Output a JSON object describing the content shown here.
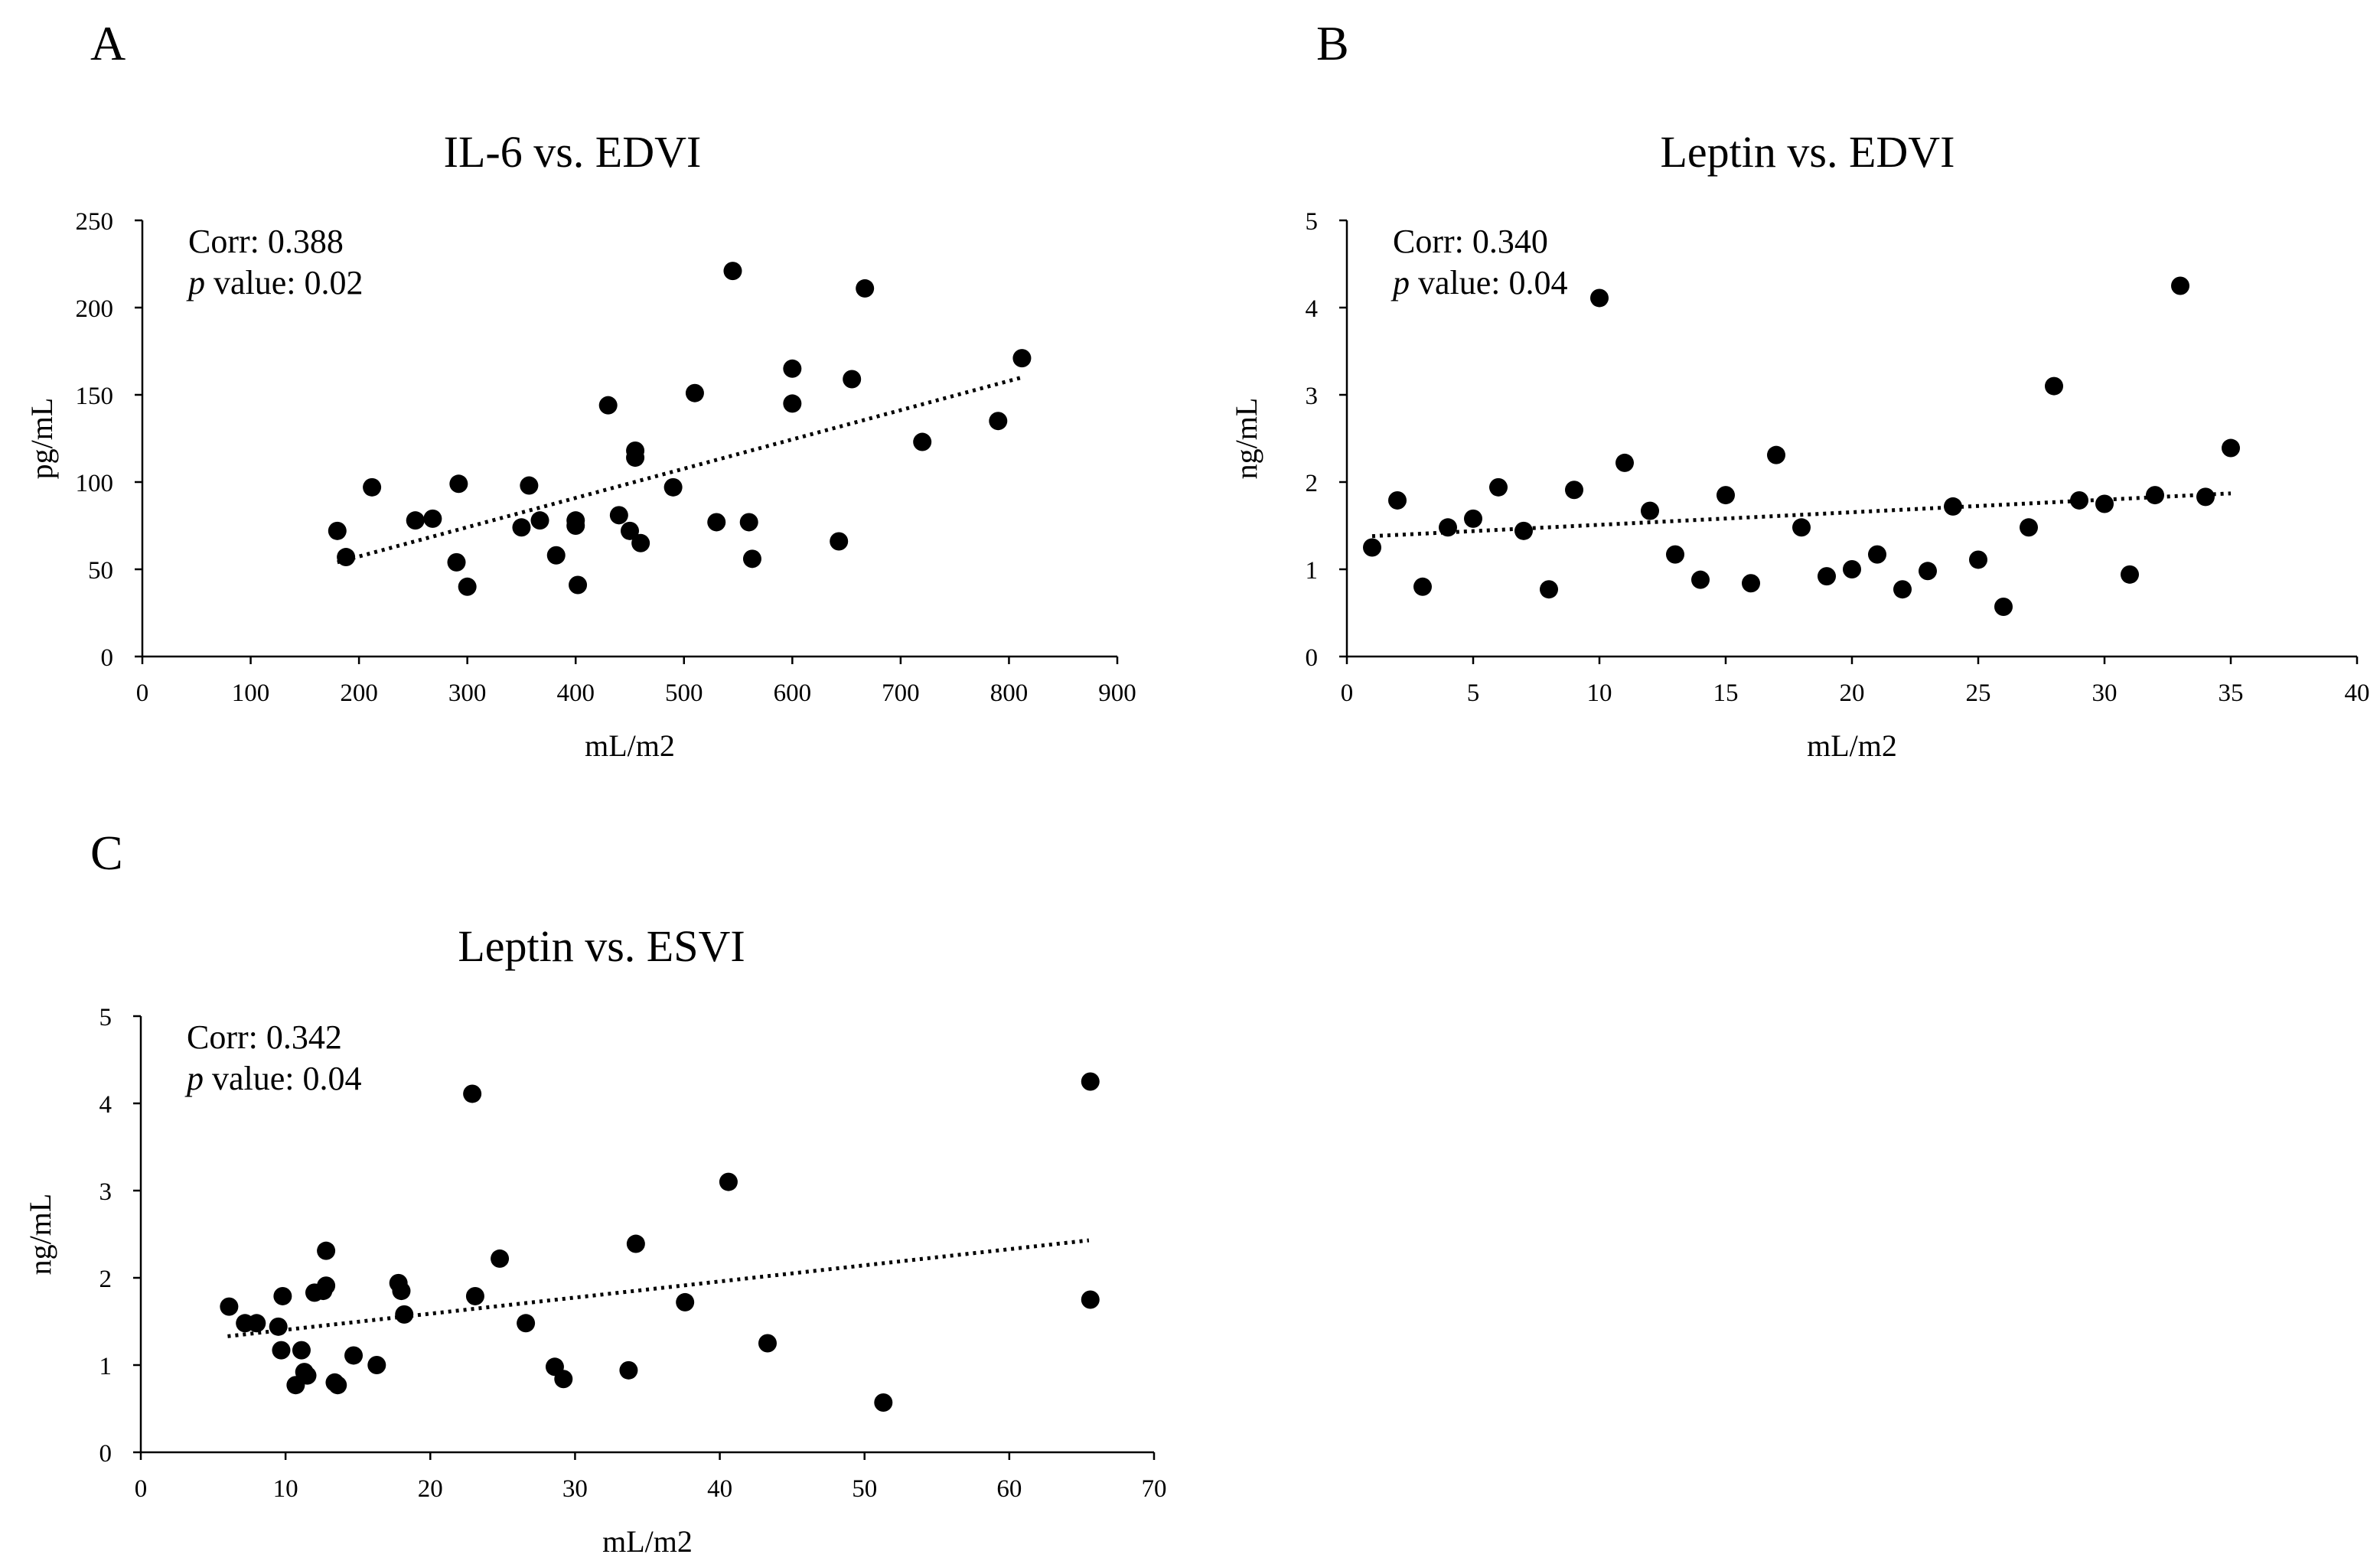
{
  "chart_data": [
    {
      "type": "scatter",
      "panel": "A",
      "title": "IL-6 vs. EDVI",
      "xlabel": "mL/m2",
      "ylabel": "pg/mL",
      "xlim": [
        0,
        900
      ],
      "ylim": [
        0,
        250
      ],
      "xticks": [
        0,
        100,
        200,
        300,
        400,
        500,
        600,
        700,
        800,
        900
      ],
      "yticks": [
        0,
        50,
        100,
        150,
        200,
        250
      ],
      "annotation": {
        "corr_label": "Corr: 0.388",
        "p_symbol": "p",
        "p_rest": " value: 0.02"
      },
      "trendline": {
        "x": [
          180,
          812
        ],
        "y": [
          54,
          160
        ]
      },
      "points": [
        {
          "x": 180,
          "y": 72
        },
        {
          "x": 188,
          "y": 57
        },
        {
          "x": 212,
          "y": 97
        },
        {
          "x": 252,
          "y": 78
        },
        {
          "x": 268,
          "y": 79
        },
        {
          "x": 290,
          "y": 54
        },
        {
          "x": 292,
          "y": 99
        },
        {
          "x": 300,
          "y": 40
        },
        {
          "x": 350,
          "y": 74
        },
        {
          "x": 357,
          "y": 98
        },
        {
          "x": 367,
          "y": 78
        },
        {
          "x": 382,
          "y": 58
        },
        {
          "x": 400,
          "y": 75
        },
        {
          "x": 400,
          "y": 78
        },
        {
          "x": 402,
          "y": 41
        },
        {
          "x": 430,
          "y": 144
        },
        {
          "x": 440,
          "y": 81
        },
        {
          "x": 450,
          "y": 72
        },
        {
          "x": 455,
          "y": 118
        },
        {
          "x": 455,
          "y": 114
        },
        {
          "x": 460,
          "y": 65
        },
        {
          "x": 490,
          "y": 97
        },
        {
          "x": 510,
          "y": 151
        },
        {
          "x": 530,
          "y": 77
        },
        {
          "x": 545,
          "y": 221
        },
        {
          "x": 560,
          "y": 77
        },
        {
          "x": 563,
          "y": 56
        },
        {
          "x": 600,
          "y": 165
        },
        {
          "x": 600,
          "y": 145
        },
        {
          "x": 643,
          "y": 66
        },
        {
          "x": 655,
          "y": 159
        },
        {
          "x": 667,
          "y": 211
        },
        {
          "x": 720,
          "y": 123
        },
        {
          "x": 790,
          "y": 135
        },
        {
          "x": 812,
          "y": 171
        }
      ]
    },
    {
      "type": "scatter",
      "panel": "B",
      "title": "Leptin vs. EDVI",
      "xlabel": "mL/m2",
      "ylabel": "ng/mL",
      "xlim": [
        0,
        40
      ],
      "ylim": [
        0,
        5
      ],
      "xticks": [
        0,
        5,
        10,
        15,
        20,
        25,
        30,
        35,
        40
      ],
      "yticks": [
        0,
        1,
        2,
        3,
        4,
        5
      ],
      "annotation": {
        "corr_label": "Corr: 0.340",
        "p_symbol": "p",
        "p_rest": " value: 0.04"
      },
      "trendline": {
        "x": [
          1,
          35
        ],
        "y": [
          1.38,
          1.87
        ]
      },
      "points": [
        {
          "x": 1,
          "y": 1.25
        },
        {
          "x": 2,
          "y": 1.79
        },
        {
          "x": 3,
          "y": 0.8
        },
        {
          "x": 4,
          "y": 1.48
        },
        {
          "x": 5,
          "y": 1.58
        },
        {
          "x": 6,
          "y": 1.94
        },
        {
          "x": 7,
          "y": 1.44
        },
        {
          "x": 8,
          "y": 0.77
        },
        {
          "x": 9,
          "y": 1.91
        },
        {
          "x": 10,
          "y": 4.11
        },
        {
          "x": 11,
          "y": 2.22
        },
        {
          "x": 12,
          "y": 1.67
        },
        {
          "x": 13,
          "y": 1.17
        },
        {
          "x": 14,
          "y": 0.88
        },
        {
          "x": 15,
          "y": 1.85
        },
        {
          "x": 16,
          "y": 0.84
        },
        {
          "x": 17,
          "y": 2.31
        },
        {
          "x": 18,
          "y": 1.48
        },
        {
          "x": 19,
          "y": 0.92
        },
        {
          "x": 20,
          "y": 1.0
        },
        {
          "x": 21,
          "y": 1.17
        },
        {
          "x": 22,
          "y": 0.77
        },
        {
          "x": 23,
          "y": 0.98
        },
        {
          "x": 24,
          "y": 1.72
        },
        {
          "x": 25,
          "y": 1.11
        },
        {
          "x": 26,
          "y": 0.57
        },
        {
          "x": 27,
          "y": 1.48
        },
        {
          "x": 28,
          "y": 3.1
        },
        {
          "x": 29,
          "y": 1.79
        },
        {
          "x": 30,
          "y": 1.75
        },
        {
          "x": 31,
          "y": 0.94
        },
        {
          "x": 32,
          "y": 1.85
        },
        {
          "x": 33,
          "y": 4.25
        },
        {
          "x": 34,
          "y": 1.83
        },
        {
          "x": 35,
          "y": 2.39
        }
      ]
    },
    {
      "type": "scatter",
      "panel": "C",
      "title": "Leptin vs. ESVI",
      "xlabel": "mL/m2",
      "ylabel": "ng/mL",
      "xlim": [
        0,
        70
      ],
      "ylim": [
        0,
        5
      ],
      "xticks": [
        0,
        10,
        20,
        30,
        40,
        50,
        60,
        70
      ],
      "yticks": [
        0,
        1,
        2,
        3,
        4,
        5
      ],
      "annotation": {
        "corr_label": "Corr: 0.342",
        "p_symbol": "p",
        "p_rest": " value: 0.04"
      },
      "trendline": {
        "x": [
          6,
          65.5
        ],
        "y": [
          1.33,
          2.43
        ]
      },
      "points": [
        {
          "x": 6.1,
          "y": 1.67
        },
        {
          "x": 7.2,
          "y": 1.48
        },
        {
          "x": 8.0,
          "y": 1.48
        },
        {
          "x": 9.5,
          "y": 1.44
        },
        {
          "x": 9.7,
          "y": 1.17
        },
        {
          "x": 9.8,
          "y": 1.79
        },
        {
          "x": 10.7,
          "y": 0.77
        },
        {
          "x": 11.1,
          "y": 1.17
        },
        {
          "x": 11.3,
          "y": 0.92
        },
        {
          "x": 11.5,
          "y": 0.88
        },
        {
          "x": 12.0,
          "y": 1.83
        },
        {
          "x": 12.6,
          "y": 1.85
        },
        {
          "x": 12.8,
          "y": 1.91
        },
        {
          "x": 12.8,
          "y": 2.31
        },
        {
          "x": 13.4,
          "y": 0.8
        },
        {
          "x": 13.6,
          "y": 0.77
        },
        {
          "x": 14.7,
          "y": 1.11
        },
        {
          "x": 16.3,
          "y": 1.0
        },
        {
          "x": 17.8,
          "y": 1.94
        },
        {
          "x": 18.0,
          "y": 1.85
        },
        {
          "x": 18.2,
          "y": 1.58
        },
        {
          "x": 22.9,
          "y": 4.11
        },
        {
          "x": 23.1,
          "y": 1.79
        },
        {
          "x": 24.8,
          "y": 2.22
        },
        {
          "x": 26.6,
          "y": 1.48
        },
        {
          "x": 28.6,
          "y": 0.98
        },
        {
          "x": 29.2,
          "y": 0.84
        },
        {
          "x": 33.7,
          "y": 0.94
        },
        {
          "x": 34.2,
          "y": 2.39
        },
        {
          "x": 37.6,
          "y": 1.72
        },
        {
          "x": 40.6,
          "y": 3.1
        },
        {
          "x": 43.3,
          "y": 1.25
        },
        {
          "x": 51.3,
          "y": 0.57
        },
        {
          "x": 65.6,
          "y": 4.25
        },
        {
          "x": 65.6,
          "y": 1.75
        }
      ]
    }
  ]
}
